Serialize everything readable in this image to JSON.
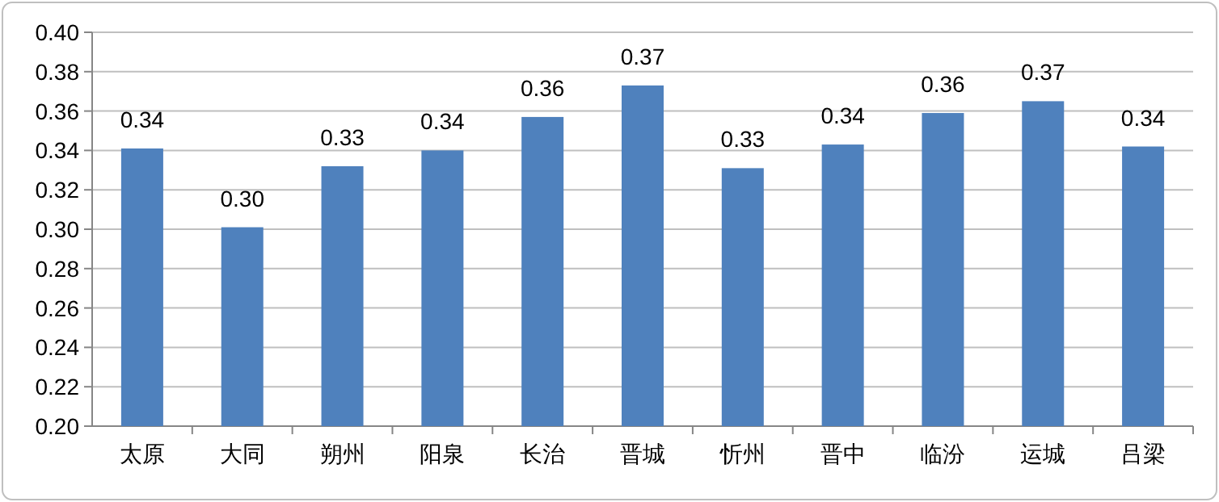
{
  "chart_data": {
    "type": "bar",
    "categories": [
      "太原",
      "大同",
      "朔州",
      "阳泉",
      "长治",
      "晋城",
      "忻州",
      "晋中",
      "临汾",
      "运城",
      "吕梁"
    ],
    "values": [
      0.341,
      0.301,
      0.332,
      0.34,
      0.357,
      0.373,
      0.331,
      0.343,
      0.359,
      0.365,
      0.342
    ],
    "value_labels": [
      "0.34",
      "0.30",
      "0.33",
      "0.34",
      "0.36",
      "0.37",
      "0.33",
      "0.34",
      "0.36",
      "0.37",
      "0.34"
    ],
    "color": "#4f81bd",
    "ylim": [
      0.2,
      0.4
    ],
    "yticks": [
      {
        "value": 0.2,
        "label": "0.20"
      },
      {
        "value": 0.22,
        "label": "0.22"
      },
      {
        "value": 0.24,
        "label": "0.24"
      },
      {
        "value": 0.26,
        "label": "0.26"
      },
      {
        "value": 0.28,
        "label": "0.28"
      },
      {
        "value": 0.3,
        "label": "0.30"
      },
      {
        "value": 0.32,
        "label": "0.32"
      },
      {
        "value": 0.34,
        "label": "0.34"
      },
      {
        "value": 0.36,
        "label": "0.36"
      },
      {
        "value": 0.38,
        "label": "0.38"
      },
      {
        "value": 0.4,
        "label": "0.40"
      }
    ],
    "grid": "y"
  }
}
